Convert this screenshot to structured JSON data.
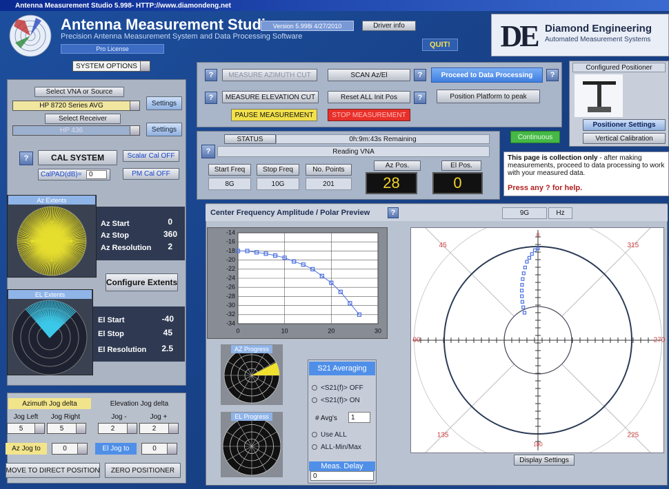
{
  "title_bar": {
    "title": "Antenna Measurement Studio 5.998- HTTP://www.diamondeng.net"
  },
  "header": {
    "app_name": "Antenna Measurement Studio",
    "subtitle": "Precision Antenna Measurement System and Data Processing Software",
    "license": "Pro License",
    "version": "Version 5.998i 4/27/2010",
    "driver_info": "Driver info",
    "quit": "QUIT!",
    "logo": "DE",
    "company": "Diamond Engineering",
    "company_tagline": "Automated Measurement Systems"
  },
  "system_options": "SYSTEM OPTIONS",
  "help_label": "?",
  "source": {
    "select_vna": "Select VNA or Source",
    "vna": "HP 8720 Series AVG",
    "settings": "Settings",
    "select_receiver": "Select Receiver",
    "receiver": "HP 436",
    "settings2": "Settings",
    "cal_system": "CAL SYSTEM",
    "scalar_cal": "Scalar Cal OFF",
    "calpad_label": "CalPAD(dB)=",
    "calpad_value": 0,
    "pm_cal": "PM Cal OFF"
  },
  "az_extents": {
    "title": "Az Extents",
    "start_label": "Az Start",
    "start": 0,
    "stop_label": "Az Stop",
    "stop": 360,
    "res_label": "Az Resolution",
    "res": 2
  },
  "configure_extents": "Configure Extents",
  "el_extents": {
    "title": "EL Extents",
    "start_label": "El Start",
    "start": -40,
    "stop_label": "El Stop",
    "stop": 45,
    "res_label": "El Resolution",
    "res": 2.5
  },
  "jog": {
    "az_title": "Azimuth Jog delta",
    "el_title": "Elevation Jog delta",
    "jog_left": "Jog Left",
    "jog_right": "Jog Right",
    "jog_minus": "Jog -",
    "jog_plus": "Jog +",
    "az_left": 5,
    "az_right": 5,
    "el_minus": 2,
    "el_plus": 2,
    "az_jog_to": "Az Jog to",
    "az_jog_value": 0,
    "el_jog_to": "El Jog to",
    "el_jog_value": 0,
    "move_direct": "MOVE TO DIRECT POSITION",
    "zero": "ZERO POSITIONER"
  },
  "controls": {
    "measure_az": "MEASURE AZIMUTH CUT",
    "scan": "SCAN Az/El",
    "proceed": "Proceed to Data Processing",
    "measure_el": "MEASURE ELEVATION CUT",
    "reset": "Reset ALL Init Pos",
    "position_peak": "Position Platform to peak",
    "pause": "PAUSE MEASUREMENT",
    "stop": "STOP MEASUREMENT"
  },
  "status": {
    "label": "STATUS",
    "remaining": "0h:9m:43s Remaining",
    "message": "Reading VNA",
    "start_freq_label": "Start Freq",
    "start_freq": "8G",
    "stop_freq_label": "Stop Freq",
    "stop_freq": "10G",
    "points_label": "No. Points",
    "points": 201,
    "az_pos_label": "Az Pos.",
    "az_pos": 28,
    "el_pos_label": "El Pos.",
    "el_pos": 0
  },
  "positioner": {
    "title": "Configured Positioner",
    "settings": "Positioner Settings",
    "vertical_cal": "Vertical Calibration",
    "continuous": "Continuous"
  },
  "info": {
    "bold": "This page is collection only",
    "text": " - after making measurements, proceed to data processing to work with your measured data.",
    "help": "Press any ? for help."
  },
  "preview": {
    "title": "Center Frequency Amplitude  / Polar Preview",
    "freq": "9G",
    "unit": "Hz",
    "display_settings": "Display Settings",
    "az_progress": "AZ Progress",
    "el_progress": "EL Progress"
  },
  "averaging": {
    "title": "S21 Averaging",
    "off": "<S21(f)> OFF",
    "on": "<S21(f)> ON",
    "avgs_label": "# Avg's",
    "avgs": 1,
    "use_all": "Use ALL",
    "all_minmax": "ALL-Min/Max",
    "meas_delay": "Meas. Delay",
    "delay": 0
  },
  "chart_data": [
    {
      "type": "line",
      "x": [
        0,
        2,
        4,
        6,
        8,
        10,
        12,
        14,
        16,
        18,
        20,
        22,
        24,
        26
      ],
      "values": [
        -18,
        -18,
        -18.3,
        -18.6,
        -19,
        -19.5,
        -20.3,
        -21,
        -22,
        -23.5,
        -25,
        -27,
        -29.5,
        -32
      ],
      "xlim": [
        0,
        30
      ],
      "xticks": [
        0,
        10,
        20,
        30
      ],
      "ylim": [
        -34,
        -14
      ],
      "yticks": [
        -14,
        -16,
        -18,
        -20,
        -22,
        -24,
        -26,
        -28,
        -30,
        -32,
        -34
      ],
      "color": "#4a6fe0",
      "grid": true
    },
    {
      "type": "polar",
      "angle_labels": [
        0,
        45,
        315,
        90,
        270,
        135,
        225,
        180
      ],
      "theta": [
        0,
        2,
        4,
        6,
        8,
        10,
        12,
        14,
        16,
        18,
        20,
        22,
        24,
        26
      ],
      "r": [
        -14.5,
        -15,
        -16,
        -17,
        -18,
        -19.5,
        -21,
        -22.5,
        -24,
        -25.5,
        -27,
        -28.5,
        -30,
        -31.5
      ],
      "rlim": [
        -40,
        -14
      ],
      "color": "#4a6fe0"
    }
  ]
}
